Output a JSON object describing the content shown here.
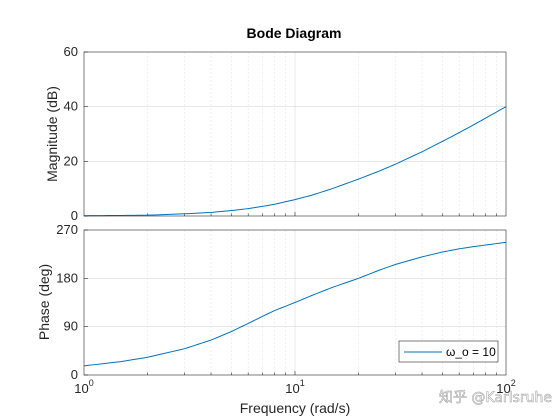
{
  "chart_data": {
    "type": "line",
    "title": "Bode Diagram",
    "xlabel": "Frequency  (rad/s)",
    "x_scale": "log",
    "x_ticks": [
      1,
      10,
      100
    ],
    "x_tick_labels": [
      {
        "base": "10",
        "exp": "0"
      },
      {
        "base": "10",
        "exp": "1"
      },
      {
        "base": "10",
        "exp": "2"
      }
    ],
    "xlim": [
      1,
      100
    ],
    "magnitude_panel": {
      "ylabel": "Magnitude (dB)",
      "ylim": [
        0,
        60
      ],
      "y_ticks": [
        0,
        20,
        40,
        60
      ],
      "y_tick_labels": [
        "0",
        "20",
        "40",
        "60"
      ],
      "grid": true
    },
    "phase_panel": {
      "ylabel": "Phase (deg)",
      "ylim": [
        0,
        270
      ],
      "y_ticks": [
        0,
        90,
        180,
        270
      ],
      "y_tick_labels": [
        "0",
        "90",
        "180",
        "270"
      ],
      "grid": true
    },
    "series": [
      {
        "name": "ω_o = 10",
        "color": "#0072bd",
        "x": [
          1,
          1.5,
          2,
          3,
          4,
          5,
          6,
          7,
          8,
          10,
          12,
          15,
          20,
          25,
          30,
          40,
          50,
          60,
          70,
          80,
          100
        ],
        "magnitude_db": [
          0.1,
          0.2,
          0.3,
          0.8,
          1.3,
          2.0,
          2.7,
          3.5,
          4.3,
          6.0,
          7.6,
          10.0,
          13.5,
          16.4,
          19.0,
          23.5,
          27.3,
          30.5,
          33.3,
          35.8,
          40.0
        ],
        "phase_deg": [
          17,
          25,
          33,
          49,
          65,
          81,
          96,
          109,
          120,
          135,
          148,
          163,
          180,
          195,
          206,
          220,
          229,
          235,
          239,
          242,
          247
        ]
      }
    ],
    "legend": {
      "location": "bottom-right",
      "panel": "phase"
    }
  },
  "watermark": "知乎 @Karlsruhe"
}
